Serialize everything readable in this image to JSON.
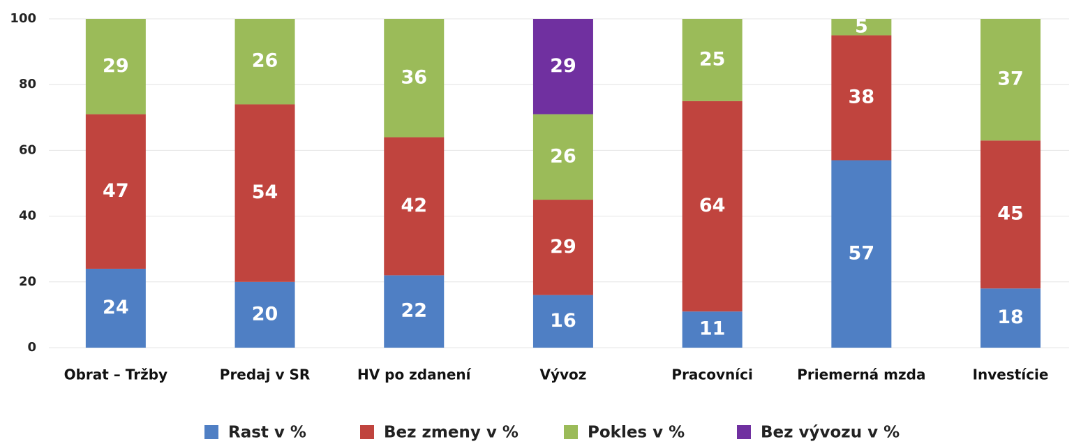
{
  "chart_data": {
    "type": "stacked_bar",
    "categories": [
      "Obrat – Tržby",
      "Predaj v SR",
      "HV po zdanení",
      "Vývoz",
      "Pracovníci",
      "Priemerná mzda",
      "Investície"
    ],
    "series": [
      {
        "name": "Rast v %",
        "color": "#4f7fc4",
        "values": [
          24,
          20,
          22,
          16,
          11,
          57,
          18
        ]
      },
      {
        "name": "Bez zmeny v %",
        "color": "#c0443e",
        "values": [
          47,
          54,
          42,
          29,
          64,
          38,
          45
        ]
      },
      {
        "name": "Pokles v %",
        "color": "#9bbb59",
        "values": [
          29,
          26,
          36,
          26,
          25,
          5,
          37
        ]
      },
      {
        "name": "Bez vývozu v %",
        "color": "#7030a0",
        "values": [
          null,
          null,
          null,
          29,
          null,
          null,
          null
        ]
      }
    ],
    "ylim": [
      0,
      100
    ],
    "yticks": [
      0,
      20,
      40,
      60,
      80,
      100
    ],
    "grid": true,
    "legend": "bottom"
  }
}
